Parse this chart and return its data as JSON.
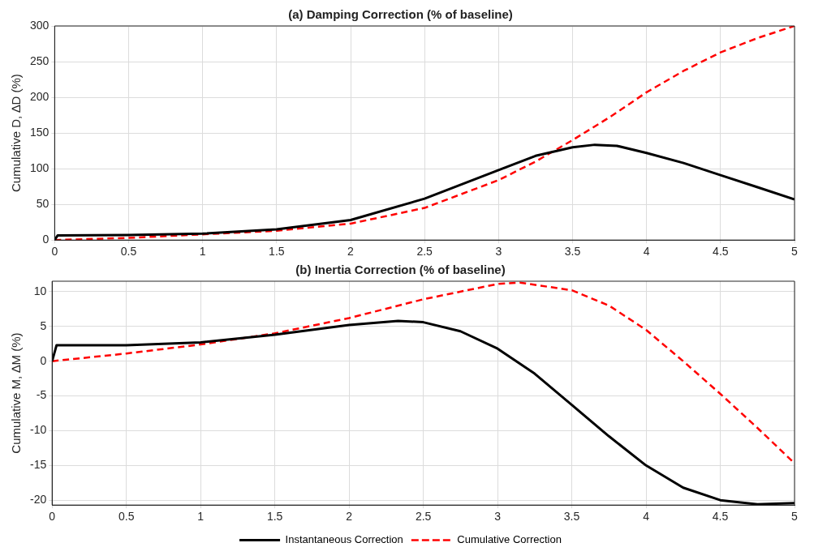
{
  "chart_data": [
    {
      "type": "line",
      "title": "(a) Damping Correction (% of baseline)",
      "ylabel": "Cumulative D, ∆D (%)",
      "xlim": [
        0,
        5
      ],
      "xticks": [
        0,
        0.5,
        1,
        1.5,
        2,
        2.5,
        3,
        3.5,
        4,
        4.5,
        5
      ],
      "ylim": [
        0,
        300
      ],
      "yticks": [
        0,
        50,
        100,
        150,
        200,
        250,
        300
      ],
      "grid": true,
      "legend": false,
      "series": [
        {
          "color": "#000000",
          "line_style": "solid",
          "x": [
            0,
            0.02,
            0.5,
            1,
            1.5,
            2,
            2.5,
            3,
            3.25,
            3.5,
            3.65,
            3.8,
            4,
            4.25,
            4.5,
            4.75,
            5
          ],
          "values": [
            0,
            6.5,
            7,
            9,
            15,
            28,
            58,
            98,
            118,
            130,
            133.5,
            132,
            122,
            108,
            91,
            74,
            57
          ]
        },
        {
          "color": "#ff0000",
          "line_style": "dashed",
          "x": [
            0,
            0.5,
            1,
            1.5,
            2,
            2.5,
            3,
            3.25,
            3.4,
            3.5,
            3.75,
            4,
            4.25,
            4.5,
            4.75,
            5
          ],
          "values": [
            0,
            3,
            8,
            13,
            23,
            45,
            84,
            110,
            128,
            140,
            172,
            207,
            237,
            263,
            283,
            300
          ]
        }
      ]
    },
    {
      "type": "line",
      "title": "(b) Inertia Correction (% of baseline)",
      "ylabel": "Cumulative M, ∆M (%)",
      "xlim": [
        0,
        5
      ],
      "xticks": [
        0,
        0.5,
        1,
        1.5,
        2,
        2.5,
        3,
        3.5,
        4,
        4.5,
        5
      ],
      "ylim": [
        -20.7,
        11.5
      ],
      "yticks": [
        -20,
        -15,
        -10,
        -5,
        0,
        5,
        10
      ],
      "grid": true,
      "legend": "bottom",
      "series": [
        {
          "name": "Instantaneous Correction",
          "color": "#000000",
          "line_style": "solid",
          "x": [
            0,
            0.03,
            0.5,
            1,
            1.5,
            2,
            2.33,
            2.5,
            2.75,
            3,
            3.25,
            3.5,
            3.75,
            4,
            4.25,
            4.5,
            4.75,
            5
          ],
          "values": [
            0,
            2.3,
            2.3,
            2.7,
            3.8,
            5.2,
            5.8,
            5.6,
            4.3,
            1.8,
            -1.8,
            -6.3,
            -10.8,
            -15,
            -18.2,
            -20,
            -20.6,
            -20.4
          ]
        },
        {
          "name": "Cumulative Correction",
          "color": "#ff0000",
          "line_style": "dashed",
          "x": [
            0,
            0.5,
            1,
            1.5,
            2,
            2.5,
            3,
            3.15,
            3.5,
            3.75,
            4,
            4.25,
            4.5,
            4.75,
            5
          ],
          "values": [
            0,
            1.1,
            2.4,
            4,
            6.2,
            8.9,
            11.1,
            11.3,
            10.2,
            8,
            4.5,
            0,
            -4.7,
            -9.6,
            -14.7
          ]
        }
      ]
    }
  ]
}
